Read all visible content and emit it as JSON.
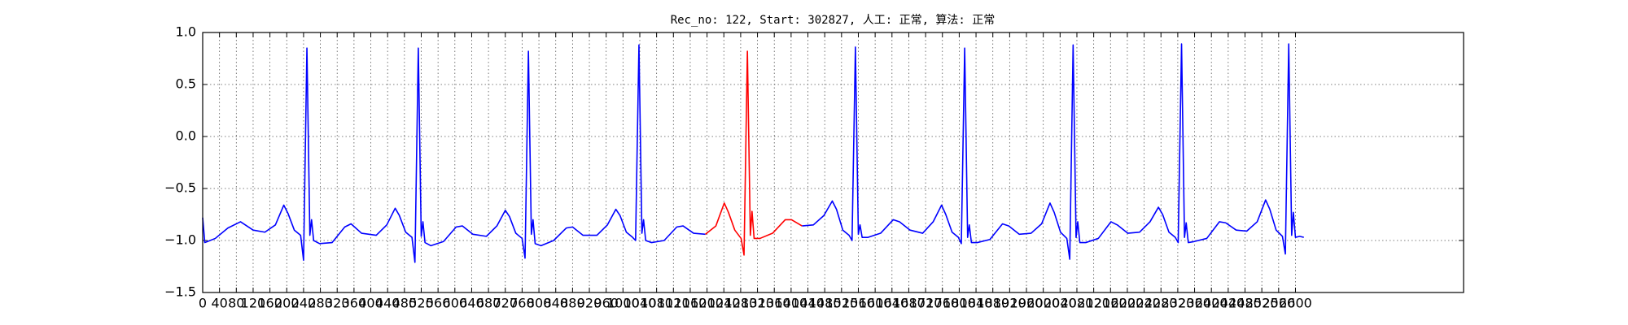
{
  "chart_data": {
    "type": "line",
    "title": "Rec_no: 122, Start: 302827, 人工: 正常, 算法: 正常",
    "xlim": [
      0,
      3000
    ],
    "xticks": [
      0,
      40,
      80,
      120,
      160,
      200,
      240,
      280,
      320,
      360,
      400,
      440,
      480,
      520,
      560,
      600,
      640,
      680,
      720,
      760,
      800,
      840,
      880,
      920,
      960,
      1000,
      1040,
      1080,
      1120,
      1160,
      1200,
      1240,
      1280,
      1320,
      1360,
      1400,
      1440,
      1480,
      1520,
      1560,
      1600,
      1640,
      1680,
      1720,
      1760,
      1800,
      1840,
      1880,
      1920,
      1960,
      2000,
      2040,
      2080,
      2120,
      2160,
      2200,
      2240,
      2280,
      2320,
      2360,
      2400,
      2440,
      2480,
      2520,
      2560,
      2600
    ],
    "ylim": [
      -1.5,
      1.0
    ],
    "yticks": [
      {
        "value": -1.5,
        "label": "−1.5"
      },
      {
        "value": -1.0,
        "label": "−1.0"
      },
      {
        "value": -0.5,
        "label": "−0.5"
      },
      {
        "value": 0.0,
        "label": "0.0"
      },
      {
        "value": 0.5,
        "label": "0.5"
      },
      {
        "value": 1.0,
        "label": "1.0"
      }
    ],
    "grid": true,
    "series": [
      {
        "color": "#0000ff",
        "x": [
          0,
          5,
          30,
          60,
          90,
          120,
          148,
          173,
          193,
          203,
          218,
          233,
          240,
          248,
          255,
          259,
          264,
          278,
          308,
          338,
          353,
          378,
          413,
          438,
          458,
          468,
          483,
          498,
          505,
          513,
          520,
          524,
          529,
          543,
          573,
          603,
          618,
          643,
          675,
          700,
          720,
          730,
          745,
          760,
          767,
          775,
          782,
          786,
          791,
          805,
          835,
          865,
          880,
          905,
          938,
          963,
          983,
          993,
          1008,
          1023,
          1030,
          1038,
          1045,
          1049,
          1054,
          1068,
          1098,
          1128,
          1143,
          1168,
          1196,
          1300,
          1426,
          1453,
          1478,
          1498,
          1508,
          1523,
          1538,
          1545,
          1553,
          1560,
          1564,
          1569,
          1583,
          1613,
          1643,
          1658,
          1683,
          1713,
          1738,
          1758,
          1768,
          1783,
          1798,
          1805,
          1813,
          1820,
          1824,
          1829,
          1843,
          1873,
          1903,
          1918,
          1943,
          1971,
          1996,
          2016,
          2026,
          2041,
          2056,
          2063,
          2071,
          2078,
          2082,
          2087,
          2101,
          2131,
          2161,
          2176,
          2201,
          2229,
          2254,
          2274,
          2284,
          2299,
          2314,
          2321,
          2329,
          2336,
          2340,
          2345,
          2359,
          2389,
          2419,
          2434,
          2459,
          2484,
          2509,
          2529,
          2539,
          2554,
          2569,
          2576,
          2584,
          2591,
          2595,
          2600,
          2610,
          2620
        ],
        "values": [
          -0.78,
          -1.02,
          -0.98,
          -0.88,
          -0.82,
          -0.9,
          -0.92,
          -0.85,
          -0.66,
          -0.74,
          -0.9,
          -0.95,
          -1.19,
          0.85,
          -0.95,
          -0.8,
          -1.0,
          -1.03,
          -1.02,
          -0.87,
          -0.84,
          -0.93,
          -0.95,
          -0.85,
          -0.69,
          -0.76,
          -0.92,
          -0.97,
          -1.21,
          0.85,
          -0.96,
          -0.82,
          -1.02,
          -1.05,
          -1.01,
          -0.87,
          -0.86,
          -0.94,
          -0.96,
          -0.86,
          -0.71,
          -0.77,
          -0.93,
          -0.98,
          -1.17,
          0.82,
          -0.94,
          -0.8,
          -1.03,
          -1.05,
          -1.0,
          -0.88,
          -0.87,
          -0.95,
          -0.95,
          -0.85,
          -0.7,
          -0.76,
          -0.92,
          -0.97,
          -1.0,
          0.88,
          -0.93,
          -0.8,
          -1.0,
          -1.02,
          -1.0,
          -0.87,
          -0.86,
          -0.93,
          -0.94,
          null,
          -0.86,
          -0.85,
          -0.76,
          -0.62,
          -0.7,
          -0.9,
          -0.95,
          -1.0,
          0.86,
          -0.94,
          -0.85,
          -0.97,
          -0.97,
          -0.93,
          -0.8,
          -0.82,
          -0.9,
          -0.93,
          -0.82,
          -0.66,
          -0.75,
          -0.92,
          -0.97,
          -1.03,
          0.85,
          -0.97,
          -0.85,
          -1.02,
          -1.02,
          -0.99,
          -0.84,
          -0.86,
          -0.94,
          -0.93,
          -0.84,
          -0.64,
          -0.73,
          -0.92,
          -0.98,
          -1.18,
          0.88,
          -0.97,
          -0.82,
          -1.02,
          -1.02,
          -0.98,
          -0.82,
          -0.85,
          -0.93,
          -0.92,
          -0.82,
          -0.68,
          -0.75,
          -0.92,
          -0.97,
          -1.02,
          0.89,
          -0.97,
          -0.83,
          -1.02,
          -1.01,
          -0.98,
          -0.82,
          -0.83,
          -0.9,
          -0.91,
          -0.82,
          -0.61,
          -0.7,
          -0.9,
          -0.96,
          -1.13,
          0.89,
          -0.95,
          -0.73,
          -0.97,
          -0.96,
          -0.97
        ]
      },
      {
        "color": "#ff0000",
        "x": [
          1196,
          1221,
          1241,
          1251,
          1266,
          1281,
          1288,
          1296,
          1303,
          1307,
          1312,
          1326,
          1356,
          1386,
          1401,
          1426
        ],
        "values": [
          -0.94,
          -0.86,
          -0.64,
          -0.73,
          -0.9,
          -0.98,
          -1.14,
          0.82,
          -0.95,
          -0.72,
          -0.98,
          -0.98,
          -0.93,
          -0.8,
          -0.8,
          -0.86
        ]
      }
    ]
  }
}
